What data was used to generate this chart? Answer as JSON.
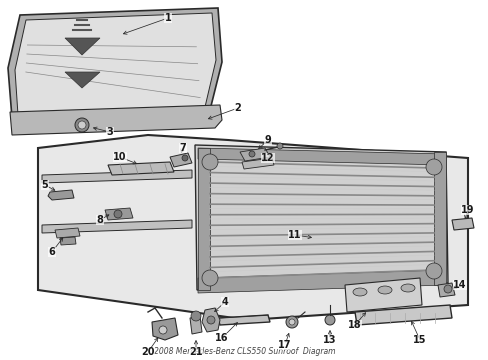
{
  "title": "2008 Mercedes-Benz CLS550 Sunroof  Diagram",
  "bg": "#ffffff",
  "fg": "#1a1a1a",
  "gray1": "#c8c8c8",
  "gray2": "#e8e8e8",
  "gray3": "#d0d0d0",
  "gray4": "#b0b0b0",
  "lc": "#2a2a2a",
  "fig_w": 4.89,
  "fig_h": 3.6,
  "dpi": 100
}
